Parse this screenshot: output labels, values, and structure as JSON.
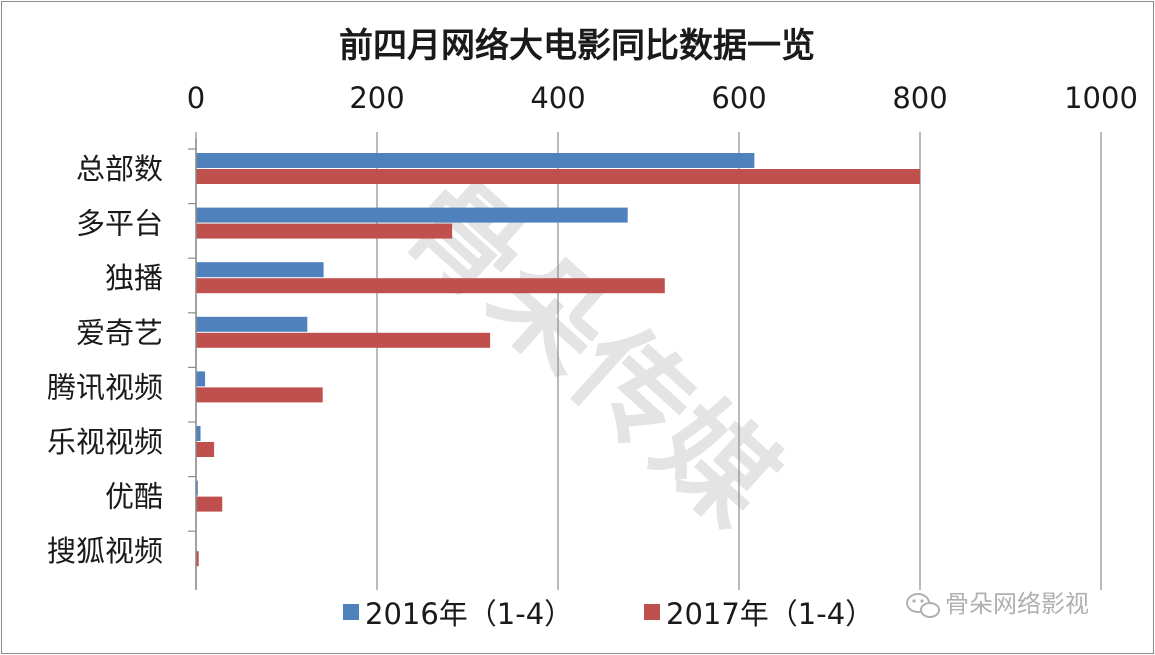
{
  "chart_data": {
    "type": "bar",
    "orientation": "horizontal",
    "title": "前四月网络大电影同比数据一览",
    "categories": [
      "总部数",
      "多平台",
      "独播",
      "爱奇艺",
      "腾讯视频",
      "乐视视频",
      "优酷",
      "搜狐视频"
    ],
    "series": [
      {
        "name": "2016年（1-4）",
        "color": "#4f81bd",
        "values": [
          617,
          477,
          141,
          123,
          10,
          5,
          2,
          0
        ]
      },
      {
        "name": "2017年（1-4）",
        "color": "#c0504d",
        "values": [
          800,
          283,
          518,
          325,
          140,
          20,
          29,
          3
        ]
      }
    ],
    "xlim": [
      0,
      1000
    ],
    "xticks": [
      "0",
      "200",
      "400",
      "600",
      "800",
      "1000"
    ],
    "x_axis_position": "top",
    "grid": true,
    "legend_position": "bottom"
  },
  "watermark": {
    "text": "骨朵传媒"
  },
  "credit": {
    "text": "骨朵网络影视"
  }
}
